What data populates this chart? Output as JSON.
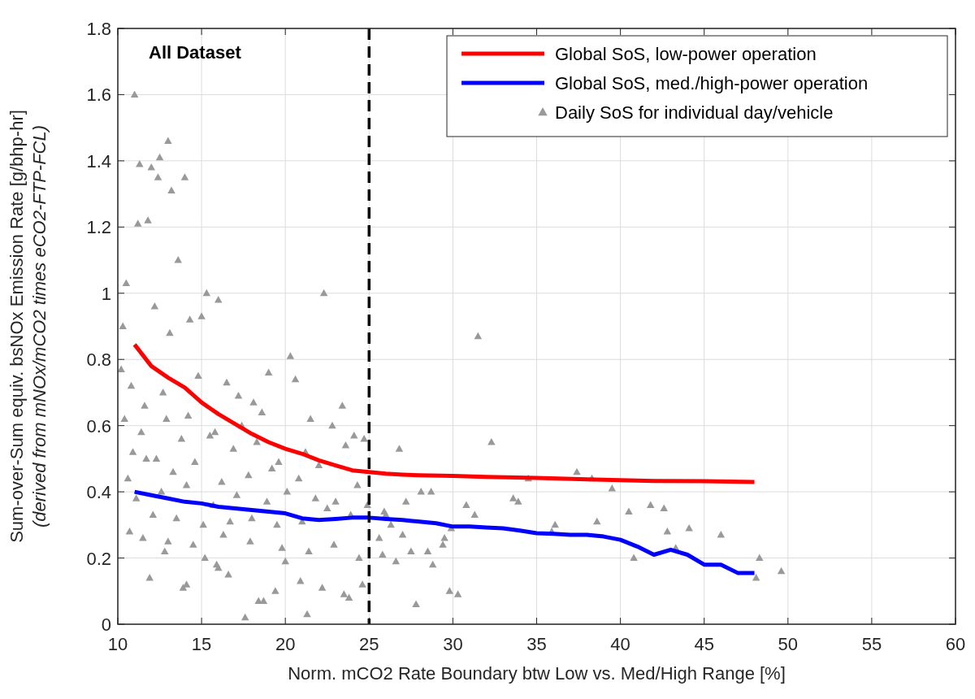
{
  "chart_data": {
    "type": "line",
    "xlabel": "Norm. mCO2 Rate Boundary btw Low vs. Med/High Range [%]",
    "ylabel": "Sum-over-Sum equiv. bsNOx Emission Rate [g/bhp-hr]\n(derived from mNOx/mCO2 times eCO2-FTP-FCL)",
    "annotations": [
      "All Dataset"
    ],
    "xlim": [
      10,
      60
    ],
    "ylim": [
      0,
      1.8
    ],
    "xticks": [
      10,
      15,
      20,
      25,
      30,
      35,
      40,
      45,
      50,
      55,
      60
    ],
    "yticks": [
      0,
      0.2,
      0.4,
      0.6,
      0.8,
      1,
      1.2,
      1.4,
      1.6,
      1.8
    ],
    "grid": true,
    "legend": "top right",
    "ref_lines": [
      {
        "axis": "x",
        "value": 25,
        "color": "#000000",
        "line_style": "dashed"
      }
    ],
    "series": [
      {
        "name": "Global SoS, low-power operation",
        "color": "#ff0000",
        "x": [
          11,
          12,
          13,
          14,
          15,
          16,
          17,
          18,
          19,
          20,
          21,
          22,
          23,
          24,
          25,
          26,
          27,
          28,
          30,
          32,
          35,
          38,
          40,
          42,
          45,
          48
        ],
        "values": [
          0.845,
          0.78,
          0.745,
          0.715,
          0.67,
          0.635,
          0.605,
          0.575,
          0.55,
          0.53,
          0.515,
          0.495,
          0.48,
          0.465,
          0.46,
          0.455,
          0.452,
          0.45,
          0.448,
          0.445,
          0.442,
          0.438,
          0.435,
          0.433,
          0.432,
          0.43
        ]
      },
      {
        "name": "Global SoS, med./high-power operation",
        "color": "#0000ff",
        "x": [
          11,
          12,
          13,
          14,
          15,
          16,
          17,
          18,
          19,
          20,
          21,
          22,
          23,
          24,
          25,
          26,
          27,
          28,
          29,
          30,
          31,
          32,
          33,
          34,
          35,
          36,
          37,
          38,
          39,
          40,
          41,
          42,
          43,
          44,
          45,
          46,
          47,
          48
        ],
        "values": [
          0.4,
          0.39,
          0.38,
          0.37,
          0.365,
          0.355,
          0.35,
          0.345,
          0.34,
          0.335,
          0.32,
          0.315,
          0.318,
          0.322,
          0.322,
          0.318,
          0.315,
          0.31,
          0.305,
          0.295,
          0.295,
          0.292,
          0.29,
          0.283,
          0.275,
          0.273,
          0.27,
          0.27,
          0.265,
          0.255,
          0.235,
          0.21,
          0.225,
          0.21,
          0.18,
          0.18,
          0.155,
          0.155
        ]
      },
      {
        "name": "Daily SoS for individual day/vehicle",
        "type": "scatter",
        "marker": "triangle",
        "color": "#999999",
        "x": [
          11,
          12.5,
          13,
          12,
          11.3,
          12.4,
          13.2,
          14,
          11.2,
          10.5,
          10.3,
          11.8,
          13.6,
          15.3,
          15,
          16,
          12.2,
          13.1,
          14.3,
          10.2,
          10.8,
          11.6,
          12.7,
          14.8,
          16.5,
          17.2,
          18.1,
          19,
          20.3,
          21.5,
          22.3,
          23.4,
          20.6,
          18.6,
          17.4,
          15.8,
          14.2,
          12.9,
          11.4,
          10.4,
          10.9,
          12.3,
          13.8,
          15.5,
          16.9,
          18.3,
          19.6,
          21.2,
          22.8,
          24.1,
          24.7,
          23.6,
          22,
          20.8,
          19.2,
          17.8,
          16.2,
          14.6,
          13.3,
          11.7,
          10.6,
          11.1,
          12.6,
          14.1,
          15.7,
          17.1,
          18.9,
          20.1,
          21.8,
          23,
          24.3,
          24.9,
          23.9,
          22.5,
          21,
          19.5,
          18,
          16.7,
          15.1,
          13.5,
          12.1,
          10.7,
          11.5,
          13,
          14.5,
          16.3,
          17.9,
          19.8,
          21.4,
          22.9,
          24.4,
          25.6,
          26.3,
          27.2,
          25.9,
          26.8,
          28.1,
          26,
          27.5,
          28.8,
          29.5,
          31.5,
          32.3,
          30.8,
          33.6,
          34.5,
          36.1,
          37.4,
          38.3,
          39.5,
          40.5,
          41.8,
          42.8,
          43.3,
          44.1,
          46,
          48.3,
          49.6,
          48.1,
          42.6,
          40.8,
          38.6,
          35.9,
          33.9,
          31.3,
          29.9,
          28.7,
          27,
          25.8,
          26.6,
          29.4,
          30.3,
          29.8,
          28.5,
          27.8,
          24.6,
          23.8,
          22.2,
          20.9,
          19.4,
          17.6,
          16,
          14.1,
          11.9,
          13.9,
          16.6,
          18.4,
          20,
          15.2,
          12.8,
          15.9,
          18.7,
          21.3,
          23.5
        ],
        "values": [
          1.6,
          1.41,
          1.46,
          1.38,
          1.39,
          1.35,
          1.31,
          1.35,
          1.21,
          1.03,
          0.9,
          1.22,
          1.1,
          1.0,
          0.93,
          0.98,
          0.96,
          0.88,
          0.92,
          0.77,
          0.72,
          0.66,
          0.7,
          0.75,
          0.73,
          0.69,
          0.67,
          0.76,
          0.81,
          0.62,
          1.0,
          0.66,
          0.74,
          0.64,
          0.6,
          0.58,
          0.63,
          0.62,
          0.58,
          0.62,
          0.52,
          0.5,
          0.56,
          0.57,
          0.53,
          0.55,
          0.49,
          0.52,
          0.6,
          0.57,
          0.56,
          0.54,
          0.48,
          0.44,
          0.47,
          0.45,
          0.43,
          0.49,
          0.46,
          0.5,
          0.44,
          0.38,
          0.4,
          0.42,
          0.36,
          0.39,
          0.37,
          0.4,
          0.38,
          0.37,
          0.42,
          0.36,
          0.33,
          0.35,
          0.31,
          0.3,
          0.32,
          0.31,
          0.3,
          0.32,
          0.33,
          0.28,
          0.26,
          0.25,
          0.24,
          0.27,
          0.25,
          0.23,
          0.22,
          0.24,
          0.2,
          0.26,
          0.3,
          0.37,
          0.34,
          0.53,
          0.4,
          0.33,
          0.22,
          0.18,
          0.26,
          0.87,
          0.55,
          0.36,
          0.38,
          0.44,
          0.3,
          0.46,
          0.44,
          0.41,
          0.34,
          0.36,
          0.28,
          0.23,
          0.29,
          0.27,
          0.2,
          0.16,
          0.14,
          0.35,
          0.2,
          0.31,
          0.28,
          0.37,
          0.33,
          0.29,
          0.4,
          0.27,
          0.21,
          0.19,
          0.24,
          0.09,
          0.1,
          0.22,
          0.06,
          0.12,
          0.08,
          0.11,
          0.13,
          0.1,
          0.02,
          0.17,
          0.12,
          0.14,
          0.11,
          0.15,
          0.07,
          0.19,
          0.2,
          0.22,
          0.18,
          0.07,
          0.03,
          0.09
        ]
      }
    ]
  }
}
